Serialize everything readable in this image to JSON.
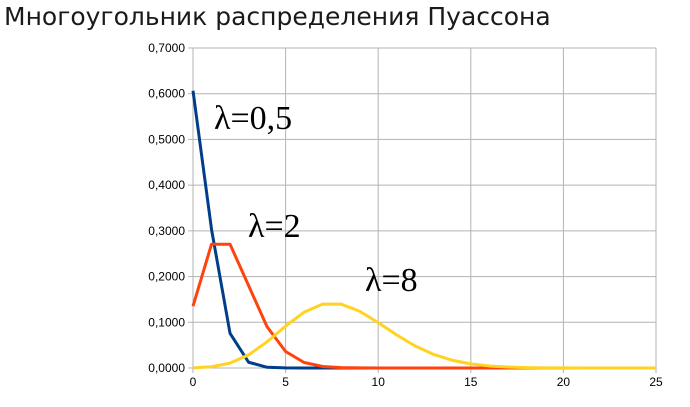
{
  "chart_data": {
    "type": "line",
    "title": "Многоугольник распределения Пуассона",
    "x": [
      0,
      1,
      2,
      3,
      4,
      5,
      6,
      7,
      8,
      9,
      10,
      11,
      12,
      13,
      14,
      15,
      16,
      17,
      18,
      19,
      20,
      21,
      22,
      23,
      24,
      25
    ],
    "xticks": [
      "0",
      "5",
      "10",
      "15",
      "20",
      "25"
    ],
    "yticks": [
      "0,0000",
      "0,1000",
      "0,2000",
      "0,3000",
      "0,4000",
      "0,5000",
      "0,6000",
      "0,7000"
    ],
    "xlim": [
      0,
      25
    ],
    "ylim": [
      0,
      0.7
    ],
    "grid": true,
    "series": [
      {
        "color": "#003f87",
        "values": [
          0.6065,
          0.3033,
          0.0758,
          0.0126,
          0.0016,
          0.0002,
          0,
          0,
          0,
          0,
          0,
          0,
          0,
          0,
          0,
          0,
          0,
          0,
          0,
          0,
          0,
          0,
          0,
          0,
          0,
          0
        ]
      },
      {
        "color": "#ff420e",
        "values": [
          0.1353,
          0.2707,
          0.2707,
          0.1804,
          0.0902,
          0.0361,
          0.012,
          0.0034,
          0.0009,
          0.0002,
          0,
          0,
          0,
          0,
          0,
          0,
          0,
          0,
          0,
          0,
          0,
          0,
          0,
          0,
          0,
          0
        ]
      },
      {
        "color": "#ffd320",
        "values": [
          0.0003,
          0.0027,
          0.0107,
          0.0286,
          0.0573,
          0.0916,
          0.1221,
          0.1396,
          0.1396,
          0.1241,
          0.0993,
          0.0722,
          0.0481,
          0.0296,
          0.0169,
          0.009,
          0.0045,
          0.0021,
          0.0009,
          0.0004,
          0.0002,
          0.0001,
          0,
          0,
          0,
          0
        ]
      }
    ],
    "annotations": [
      {
        "label": "λ=0,5",
        "series": 0
      },
      {
        "label": "λ=2",
        "series": 1
      },
      {
        "label": "λ=8",
        "series": 2
      }
    ]
  }
}
